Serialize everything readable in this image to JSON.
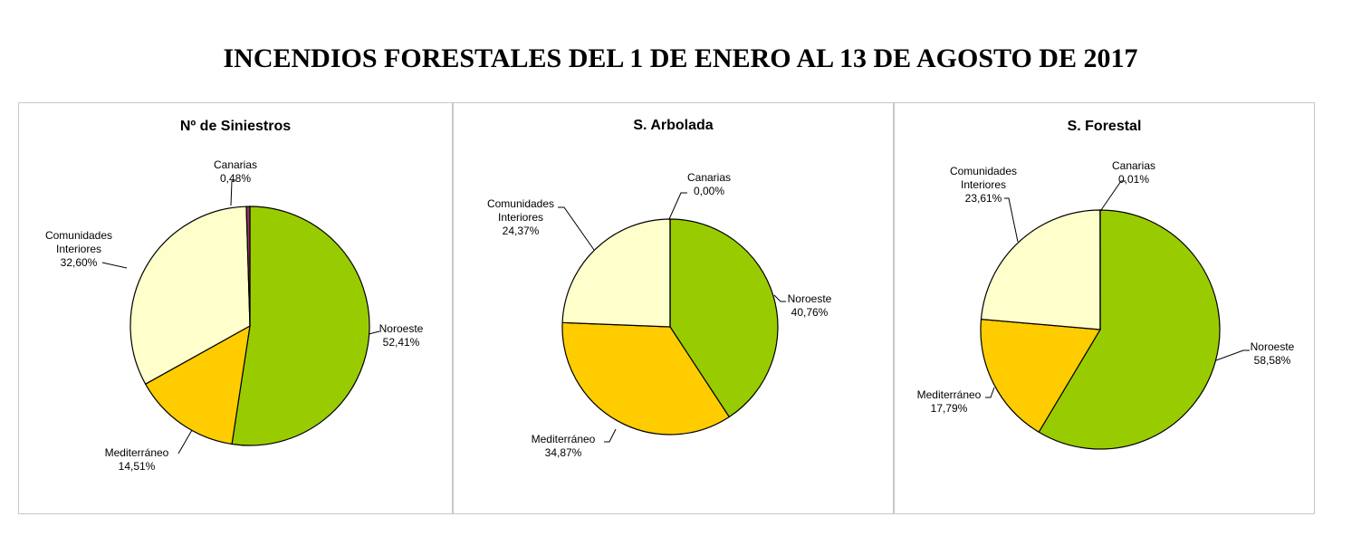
{
  "page_title": "INCENDIOS FORESTALES DEL 1 DE ENERO AL 13 DE AGOSTO DE 2017",
  "colors": {
    "Noroeste": "#99cc00",
    "Mediterráneo": "#ffcc00",
    "Comunidades Interiores": "#ffffcc",
    "Canarias": "#993366"
  },
  "chart_data": [
    {
      "type": "pie",
      "title": "Nº de Siniestros",
      "slices": [
        {
          "label": "Noroeste",
          "value": 52.41,
          "display": "52,41%"
        },
        {
          "label": "Mediterráneo",
          "value": 14.51,
          "display": "14,51%"
        },
        {
          "label": "Comunidades Interiores",
          "value": 32.6,
          "display": "32,60%"
        },
        {
          "label": "Canarias",
          "value": 0.48,
          "display": "0,48%"
        }
      ]
    },
    {
      "type": "pie",
      "title": "S. Arbolada",
      "slices": [
        {
          "label": "Noroeste",
          "value": 40.76,
          "display": "40,76%"
        },
        {
          "label": "Mediterráneo",
          "value": 34.87,
          "display": "34,87%"
        },
        {
          "label": "Comunidades Interiores",
          "value": 24.37,
          "display": "24,37%"
        },
        {
          "label": "Canarias",
          "value": 0.0,
          "display": "0,00%"
        }
      ]
    },
    {
      "type": "pie",
      "title": "S. Forestal",
      "slices": [
        {
          "label": "Noroeste",
          "value": 58.58,
          "display": "58,58%"
        },
        {
          "label": "Mediterráneo",
          "value": 17.79,
          "display": "17,79%"
        },
        {
          "label": "Comunidades Interiores",
          "value": 23.61,
          "display": "23,61%"
        },
        {
          "label": "Canarias",
          "value": 0.01,
          "display": "0,01%"
        }
      ]
    }
  ]
}
